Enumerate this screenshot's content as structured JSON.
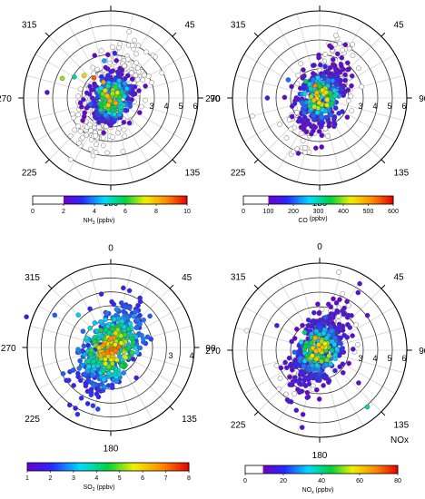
{
  "chart_data": [
    {
      "type": "scatter",
      "subtype": "polar",
      "angle_labels": [
        "0",
        "45",
        "90",
        "135",
        "180",
        "225",
        "270",
        "315"
      ],
      "radial_ticks": [
        3,
        4,
        5,
        6
      ],
      "radial_labels": [
        "3",
        "4",
        "5",
        "6"
      ],
      "rmax": 6,
      "colorbar": {
        "label_main": "NH",
        "label_sub": "3",
        "label_unit": " (ppbv)",
        "ticks": [
          "0",
          "2",
          "4",
          "6",
          "8",
          "10"
        ],
        "min": 0,
        "max": 10,
        "white_below": 2
      },
      "spread_deg": 42,
      "sigma_r": 1.45,
      "axis_angle": -65,
      "scatter": [
        {
          "angle": 292,
          "r": 3.6,
          "value": 6.8
        },
        {
          "angle": 300,
          "r": 2.9,
          "value": 5.4
        },
        {
          "angle": 310,
          "r": 2.4,
          "value": 7.6
        },
        {
          "angle": 320,
          "r": 1.8,
          "value": 9.1
        },
        {
          "angle": 335,
          "r": 1.2,
          "value": 8.3
        },
        {
          "angle": 350,
          "r": 2.6,
          "value": 4.2
        },
        {
          "angle": 5,
          "r": 3.1,
          "value": 3.0
        },
        {
          "angle": 20,
          "r": 1.6,
          "value": 2.6
        },
        {
          "angle": 275,
          "r": 4.4,
          "value": 2.4
        },
        {
          "angle": 255,
          "r": 2.2,
          "value": 1.2
        },
        {
          "angle": 160,
          "r": 2.8,
          "value": 0.8
        },
        {
          "angle": 140,
          "r": 2.0,
          "value": 1.4
        }
      ]
    },
    {
      "type": "scatter",
      "subtype": "polar",
      "angle_labels": [
        "0",
        "45",
        "90",
        "135",
        "180",
        "225",
        "270",
        "315"
      ],
      "radial_ticks": [
        3,
        4,
        5,
        6
      ],
      "radial_labels": [
        "3",
        "4",
        "5",
        "6"
      ],
      "rmax": 6,
      "colorbar": {
        "label_main": "CO",
        "label_sub": "",
        "label_unit": " (ppbv)",
        "ticks": [
          "0",
          "100",
          "200",
          "300",
          "400",
          "500",
          "600"
        ],
        "min": 0,
        "max": 600,
        "white_below": 100
      },
      "spread_deg": 45,
      "sigma_r": 1.4,
      "axis_angle": -70,
      "scatter": [
        {
          "angle": 300,
          "r": 2.5,
          "value": 210
        },
        {
          "angle": 320,
          "r": 1.5,
          "value": 330
        },
        {
          "angle": 340,
          "r": 0.9,
          "value": 520
        },
        {
          "angle": 355,
          "r": 1.4,
          "value": 260
        },
        {
          "angle": 10,
          "r": 2.2,
          "value": 170
        },
        {
          "angle": 270,
          "r": 3.6,
          "value": 140
        },
        {
          "angle": 255,
          "r": 4.8,
          "value": 80
        },
        {
          "angle": 150,
          "r": 2.1,
          "value": 160
        }
      ]
    },
    {
      "type": "scatter",
      "subtype": "polar",
      "angle_labels": [
        "0",
        "45",
        "90",
        "135",
        "180",
        "225",
        "270",
        "315"
      ],
      "radial_ticks": [
        3,
        4
      ],
      "radial_labels": [
        "3",
        "4"
      ],
      "rmax": 4,
      "colorbar": {
        "label_main": "SO",
        "label_sub": "2",
        "label_unit": " (ppbv)",
        "ticks": [
          "1",
          "2",
          "3",
          "4",
          "5",
          "6",
          "7",
          "8"
        ],
        "min": 1,
        "max": 8,
        "white_below": 0
      },
      "spread_deg": 55,
      "sigma_r": 1.0,
      "axis_angle": -60,
      "scatter": [
        {
          "angle": 290,
          "r": 4.3,
          "value": 1.6
        },
        {
          "angle": 300,
          "r": 3.1,
          "value": 2.4
        },
        {
          "angle": 315,
          "r": 2.2,
          "value": 3.2
        },
        {
          "angle": 335,
          "r": 1.1,
          "value": 2.0
        },
        {
          "angle": 350,
          "r": 2.6,
          "value": 1.8
        },
        {
          "angle": 30,
          "r": 1.7,
          "value": 1.4
        },
        {
          "angle": 140,
          "r": 1.9,
          "value": 1.5
        }
      ]
    },
    {
      "type": "scatter",
      "subtype": "polar",
      "angle_labels": [
        "0",
        "45",
        "90",
        "135",
        "180",
        "225",
        "270",
        "315"
      ],
      "radial_ticks": [
        3,
        4,
        5,
        6
      ],
      "radial_labels": [
        "3",
        "4",
        "5",
        "6"
      ],
      "rmax": 6,
      "title": "NOx",
      "colorbar": {
        "label_main": "NO",
        "label_sub": "x",
        "label_unit": " (ppbv)",
        "ticks": [
          "0",
          "20",
          "40",
          "60",
          "80"
        ],
        "min": 0,
        "max": 80,
        "white_below": 10
      },
      "spread_deg": 40,
      "sigma_r": 1.5,
      "axis_angle": -60,
      "scatter": [
        {
          "angle": 285,
          "r": 5.2,
          "value": 6
        },
        {
          "angle": 300,
          "r": 3.4,
          "value": 18
        },
        {
          "angle": 320,
          "r": 1.6,
          "value": 42
        },
        {
          "angle": 340,
          "r": 0.9,
          "value": 64
        },
        {
          "angle": 10,
          "r": 2.3,
          "value": 24
        },
        {
          "angle": 130,
          "r": 3.5,
          "value": 12
        },
        {
          "angle": 140,
          "r": 5.1,
          "value": 38
        }
      ]
    }
  ]
}
